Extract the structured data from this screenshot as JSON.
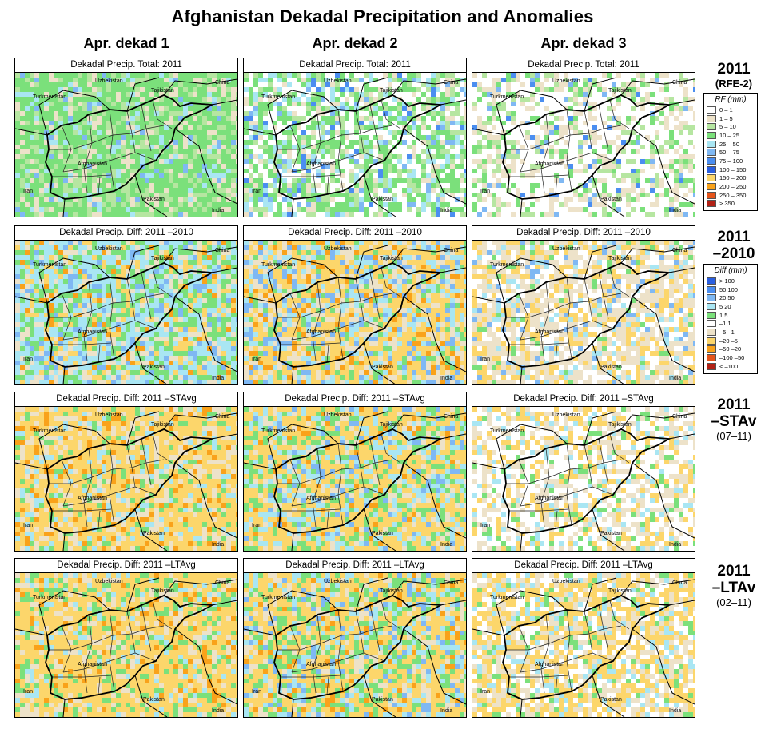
{
  "title": "Afghanistan Dekadal Precipitation and Anomalies",
  "columns": [
    "Apr. dekad 1",
    "Apr. dekad 2",
    "Apr. dekad 3"
  ],
  "rows": [
    {
      "label": "2011",
      "sub": "(RFE-2)",
      "panel_title": "Dekadal Precip. Total: 2011",
      "scale": "rf"
    },
    {
      "label": "2011",
      "sub": "–2010",
      "panel_title": "Dekadal Precip. Diff:  2011 –2010",
      "scale": "diff"
    },
    {
      "label": "2011",
      "sub": "–STAv",
      "note": "(07–11)",
      "panel_title": "Dekadal Precip. Diff:  2011 –STAvg",
      "scale": "diff"
    },
    {
      "label": "2011",
      "sub": "–LTAv",
      "note": "(02–11)",
      "panel_title": "Dekadal Precip. Diff:  2011 –LTAvg",
      "scale": "diff"
    }
  ],
  "place_labels": {
    "uzbekistan": "Uzbekistan",
    "tajikistan": "Tajikistan",
    "china": "China",
    "turkmenistan": "Turkmenistan",
    "afghanistan": "Afghanistan",
    "iran": "Iran",
    "pakistan": "Pakistan",
    "india": "India"
  },
  "legend_rf": {
    "title": "RF (mm)",
    "items": [
      {
        "label": "0 – 1",
        "color": "#ffffff"
      },
      {
        "label": "1 – 5",
        "color": "#ede2c9"
      },
      {
        "label": "5 – 10",
        "color": "#b6e6a1"
      },
      {
        "label": "10 – 25",
        "color": "#7be07b"
      },
      {
        "label": "25 – 50",
        "color": "#a9e6f3"
      },
      {
        "label": "50 – 75",
        "color": "#7fb8f3"
      },
      {
        "label": "75 – 100",
        "color": "#4b8ef0"
      },
      {
        "label": "100 – 150",
        "color": "#2a5fe0"
      },
      {
        "label": "150 – 200",
        "color": "#fcd66b"
      },
      {
        "label": "200 – 250",
        "color": "#f9a21a"
      },
      {
        "label": "250 – 350",
        "color": "#e5541b"
      },
      {
        "label": "> 350",
        "color": "#b22216"
      }
    ]
  },
  "legend_diff": {
    "title": "Diff (mm)",
    "items": [
      {
        "label": "> 100",
        "color": "#2a5fe0"
      },
      {
        "label": "50  100",
        "color": "#4b8ef0"
      },
      {
        "label": "20  50",
        "color": "#7fb8f3"
      },
      {
        "label": "5  20",
        "color": "#a9e6f3"
      },
      {
        "label": "1  5",
        "color": "#7be07b"
      },
      {
        "label": "–1  1",
        "color": "#ffffff"
      },
      {
        "label": "–5  –1",
        "color": "#ede2c9"
      },
      {
        "label": "–20  –5",
        "color": "#fcd66b"
      },
      {
        "label": "–50  –20",
        "color": "#f9a21a"
      },
      {
        "label": "–100  –50",
        "color": "#e5541b"
      },
      {
        "label": "< –100",
        "color": "#b22216"
      }
    ]
  }
}
